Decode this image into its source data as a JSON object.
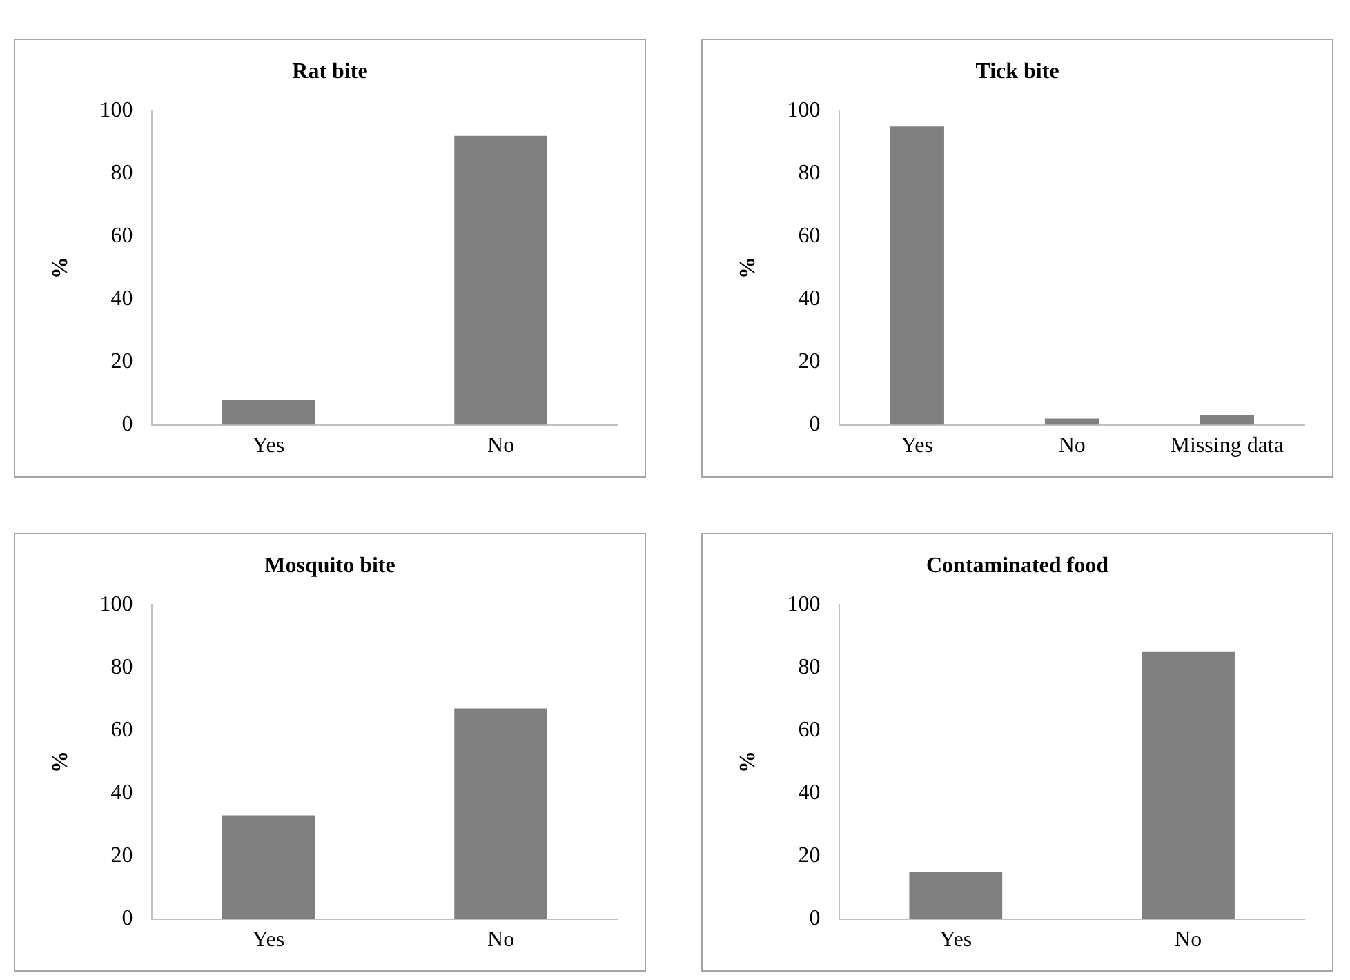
{
  "chart_data": [
    {
      "type": "bar",
      "title": "Rat bite",
      "ylabel": "%",
      "categories": [
        "Yes",
        "No"
      ],
      "values": [
        8,
        92
      ],
      "color": "#808080",
      "ylim": [
        0,
        100
      ],
      "yticks": [
        0,
        20,
        40,
        60,
        80,
        100
      ]
    },
    {
      "type": "bar",
      "title": "Tick bite",
      "ylabel": "%",
      "categories": [
        "Yes",
        "No",
        "Missing data"
      ],
      "values": [
        95,
        2,
        3
      ],
      "color": "#808080",
      "ylim": [
        0,
        100
      ],
      "yticks": [
        0,
        20,
        40,
        60,
        80,
        100
      ]
    },
    {
      "type": "bar",
      "title": "Mosquito bite",
      "ylabel": "%",
      "categories": [
        "Yes",
        "No"
      ],
      "values": [
        33,
        67
      ],
      "color": "#808080",
      "ylim": [
        0,
        100
      ],
      "yticks": [
        0,
        20,
        40,
        60,
        80,
        100
      ]
    },
    {
      "type": "bar",
      "title": "Contaminated food",
      "ylabel": "%",
      "categories": [
        "Yes",
        "No"
      ],
      "values": [
        15,
        85
      ],
      "color": "#808080",
      "ylim": [
        0,
        100
      ],
      "yticks": [
        0,
        20,
        40,
        60,
        80,
        100
      ]
    }
  ]
}
